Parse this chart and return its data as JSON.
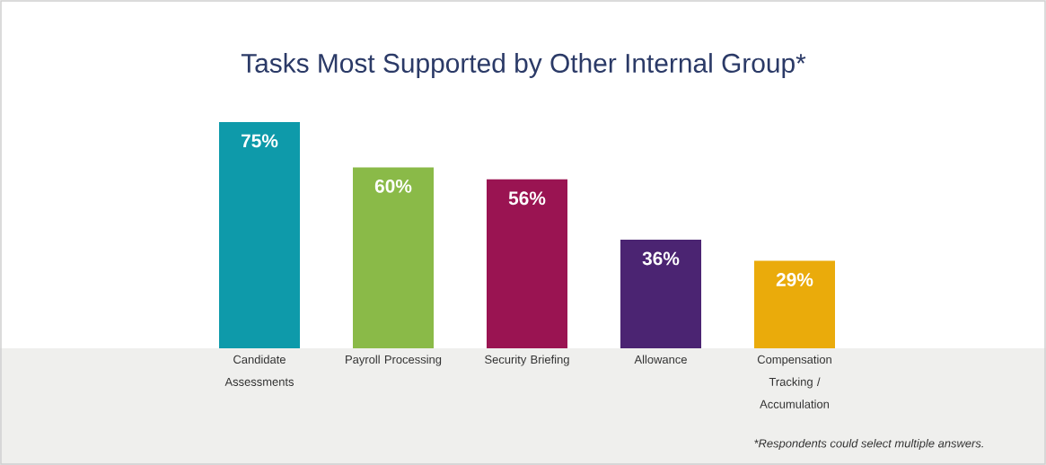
{
  "chart_data": {
    "type": "bar",
    "title": "Tasks Most Supported by Other Internal Group*",
    "categories": [
      "Candidate Assessments",
      "Payroll Processing",
      "Security Briefing",
      "Allowance",
      "Compensation Tracking / Accumulation"
    ],
    "values": [
      75,
      60,
      56,
      36,
      29
    ],
    "value_labels": [
      "75%",
      "60%",
      "56%",
      "36%",
      "29%"
    ],
    "colors": [
      "#0e9aaa",
      "#8aba48",
      "#9a1452",
      "#4b2472",
      "#eaab0b"
    ],
    "annotations": [
      "*Respondents could select multiple answers."
    ]
  }
}
